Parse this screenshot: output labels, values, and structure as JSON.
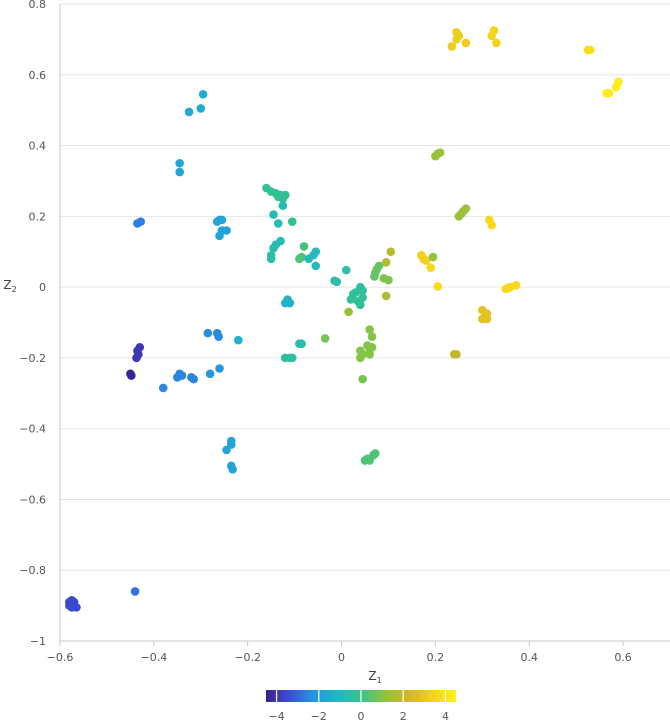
{
  "chart_data": {
    "type": "scatter",
    "title": "",
    "xlabel": {
      "main": "Z",
      "sub": "1"
    },
    "ylabel": {
      "main": "Z",
      "sub": "2"
    },
    "xlim": [
      -0.6,
      0.7
    ],
    "ylim": [
      -1.0,
      0.8
    ],
    "xticks": [
      -0.6,
      -0.4,
      -0.2,
      0,
      0.2,
      0.4,
      0.6
    ],
    "yticks": [
      -1,
      -0.8,
      -0.6,
      -0.4,
      -0.2,
      0,
      0.2,
      0.4,
      0.6,
      0.8
    ],
    "xtick_labels": [
      "−0.6",
      "−0.4",
      "−0.2",
      "0",
      "0.2",
      "0.4",
      "0.6"
    ],
    "ytick_labels": [
      "−1",
      "−0.8",
      "−0.6",
      "−0.4",
      "−0.2",
      "0",
      "0.2",
      "0.4",
      "0.6",
      "0.8"
    ],
    "grid": true,
    "colorbar": {
      "range": [
        -4.5,
        4.5
      ],
      "ticks": [
        -4,
        -2,
        0,
        2,
        4
      ],
      "tick_labels": [
        "−4",
        "−2",
        "0",
        "2",
        "4"
      ],
      "colormap": [
        "#3b1f8c",
        "#3b4ed8",
        "#2596e0",
        "#1fb8c8",
        "#36c28a",
        "#8ec43e",
        "#d2b528",
        "#f4d21c",
        "#fff21c"
      ]
    },
    "points": [
      {
        "x": 0.245,
        "y": 0.72,
        "c": 3.2
      },
      {
        "x": 0.25,
        "y": 0.71,
        "c": 3.2
      },
      {
        "x": 0.245,
        "y": 0.7,
        "c": 3.2
      },
      {
        "x": 0.235,
        "y": 0.68,
        "c": 3.2
      },
      {
        "x": 0.265,
        "y": 0.69,
        "c": 3.2
      },
      {
        "x": 0.325,
        "y": 0.725,
        "c": 3.4
      },
      {
        "x": 0.32,
        "y": 0.71,
        "c": 3.4
      },
      {
        "x": 0.33,
        "y": 0.69,
        "c": 3.4
      },
      {
        "x": 0.525,
        "y": 0.67,
        "c": 3.8
      },
      {
        "x": 0.53,
        "y": 0.67,
        "c": 3.8
      },
      {
        "x": 0.59,
        "y": 0.58,
        "c": 4.3
      },
      {
        "x": 0.585,
        "y": 0.565,
        "c": 4.3
      },
      {
        "x": 0.57,
        "y": 0.548,
        "c": 4.3
      },
      {
        "x": 0.565,
        "y": 0.548,
        "c": 4.3
      },
      {
        "x": 0.2,
        "y": 0.37,
        "c": 1.3
      },
      {
        "x": 0.205,
        "y": 0.377,
        "c": 1.3
      },
      {
        "x": 0.21,
        "y": 0.38,
        "c": 1.3
      },
      {
        "x": 0.25,
        "y": 0.2,
        "c": 1.4
      },
      {
        "x": 0.255,
        "y": 0.207,
        "c": 1.4
      },
      {
        "x": 0.26,
        "y": 0.215,
        "c": 1.4
      },
      {
        "x": 0.265,
        "y": 0.222,
        "c": 1.4
      },
      {
        "x": 0.315,
        "y": 0.19,
        "c": 3.6
      },
      {
        "x": 0.32,
        "y": 0.175,
        "c": 3.6
      },
      {
        "x": 0.17,
        "y": 0.09,
        "c": 3.3
      },
      {
        "x": 0.175,
        "y": 0.08,
        "c": 3.3
      },
      {
        "x": 0.18,
        "y": 0.075,
        "c": 3.3
      },
      {
        "x": 0.195,
        "y": 0.085,
        "c": 1.3
      },
      {
        "x": 0.19,
        "y": 0.055,
        "c": 3.6
      },
      {
        "x": 0.205,
        "y": 0.002,
        "c": 3.7
      },
      {
        "x": 0.35,
        "y": -0.005,
        "c": 3.6
      },
      {
        "x": 0.355,
        "y": -0.003,
        "c": 3.6
      },
      {
        "x": 0.36,
        "y": 0.0,
        "c": 3.6
      },
      {
        "x": 0.372,
        "y": 0.005,
        "c": 3.6
      },
      {
        "x": 0.3,
        "y": -0.065,
        "c": 2.8
      },
      {
        "x": 0.31,
        "y": -0.075,
        "c": 2.8
      },
      {
        "x": 0.305,
        "y": -0.085,
        "c": 2.8
      },
      {
        "x": 0.3,
        "y": -0.09,
        "c": 2.8
      },
      {
        "x": 0.31,
        "y": -0.09,
        "c": 2.8
      },
      {
        "x": 0.24,
        "y": -0.19,
        "c": 2.0
      },
      {
        "x": 0.245,
        "y": -0.19,
        "c": 2.0
      },
      {
        "x": 0.105,
        "y": 0.1,
        "c": 1.8
      },
      {
        "x": 0.095,
        "y": 0.07,
        "c": 1.7
      },
      {
        "x": 0.095,
        "y": -0.025,
        "c": 1.7
      },
      {
        "x": 0.08,
        "y": 0.06,
        "c": 0.6
      },
      {
        "x": 0.075,
        "y": 0.05,
        "c": 0.6
      },
      {
        "x": 0.072,
        "y": 0.04,
        "c": 0.6
      },
      {
        "x": 0.07,
        "y": 0.03,
        "c": 0.6
      },
      {
        "x": 0.09,
        "y": 0.025,
        "c": 0.9
      },
      {
        "x": 0.1,
        "y": 0.02,
        "c": 0.9
      },
      {
        "x": 0.04,
        "y": 0.0,
        "c": -0.3
      },
      {
        "x": 0.045,
        "y": -0.01,
        "c": -0.3
      },
      {
        "x": 0.03,
        "y": -0.015,
        "c": -0.3
      },
      {
        "x": 0.025,
        "y": -0.02,
        "c": -0.3
      },
      {
        "x": 0.02,
        "y": -0.035,
        "c": -0.3
      },
      {
        "x": 0.035,
        "y": -0.04,
        "c": -0.3
      },
      {
        "x": 0.04,
        "y": -0.05,
        "c": -0.3
      },
      {
        "x": 0.045,
        "y": -0.03,
        "c": -0.3
      },
      {
        "x": 0.015,
        "y": -0.07,
        "c": 1.2
      },
      {
        "x": 0.01,
        "y": 0.048,
        "c": -0.5
      },
      {
        "x": -0.015,
        "y": 0.018,
        "c": -0.5
      },
      {
        "x": -0.01,
        "y": 0.015,
        "c": -0.5
      },
      {
        "x": 0.06,
        "y": -0.12,
        "c": 1.0
      },
      {
        "x": 0.065,
        "y": -0.14,
        "c": 1.0
      },
      {
        "x": 0.055,
        "y": -0.165,
        "c": 1.0
      },
      {
        "x": 0.06,
        "y": -0.175,
        "c": 1.0
      },
      {
        "x": 0.065,
        "y": -0.17,
        "c": 1.0
      },
      {
        "x": 0.04,
        "y": -0.18,
        "c": 1.0
      },
      {
        "x": 0.045,
        "y": -0.19,
        "c": 1.0
      },
      {
        "x": 0.04,
        "y": -0.2,
        "c": 1.0
      },
      {
        "x": 0.06,
        "y": -0.19,
        "c": 1.0
      },
      {
        "x": 0.045,
        "y": -0.26,
        "c": 0.8
      },
      {
        "x": -0.035,
        "y": -0.145,
        "c": 0.8
      },
      {
        "x": 0.05,
        "y": -0.49,
        "c": 0.3
      },
      {
        "x": 0.055,
        "y": -0.485,
        "c": 0.3
      },
      {
        "x": 0.06,
        "y": -0.49,
        "c": 0.3
      },
      {
        "x": 0.068,
        "y": -0.475,
        "c": 0.3
      },
      {
        "x": 0.072,
        "y": -0.47,
        "c": 0.3
      },
      {
        "x": -0.16,
        "y": 0.28,
        "c": -0.2
      },
      {
        "x": -0.15,
        "y": 0.27,
        "c": -0.2
      },
      {
        "x": -0.14,
        "y": 0.265,
        "c": -0.2
      },
      {
        "x": -0.13,
        "y": 0.26,
        "c": -0.2
      },
      {
        "x": -0.12,
        "y": 0.26,
        "c": -0.2
      },
      {
        "x": -0.125,
        "y": 0.25,
        "c": -0.2
      },
      {
        "x": -0.135,
        "y": 0.255,
        "c": -0.2
      },
      {
        "x": -0.125,
        "y": 0.23,
        "c": -0.8
      },
      {
        "x": -0.145,
        "y": 0.205,
        "c": -0.8
      },
      {
        "x": -0.135,
        "y": 0.18,
        "c": -0.8
      },
      {
        "x": -0.105,
        "y": 0.185,
        "c": -0.2
      },
      {
        "x": -0.13,
        "y": 0.13,
        "c": -0.7
      },
      {
        "x": -0.14,
        "y": 0.12,
        "c": -0.7
      },
      {
        "x": -0.145,
        "y": 0.11,
        "c": -0.7
      },
      {
        "x": -0.15,
        "y": 0.09,
        "c": -0.5
      },
      {
        "x": -0.15,
        "y": 0.08,
        "c": -0.5
      },
      {
        "x": -0.08,
        "y": 0.115,
        "c": 0.2
      },
      {
        "x": -0.085,
        "y": 0.085,
        "c": 0.3
      },
      {
        "x": -0.09,
        "y": 0.08,
        "c": 0.3
      },
      {
        "x": -0.07,
        "y": 0.08,
        "c": -0.9
      },
      {
        "x": -0.06,
        "y": 0.09,
        "c": -0.9
      },
      {
        "x": -0.055,
        "y": 0.1,
        "c": -0.9
      },
      {
        "x": -0.055,
        "y": 0.06,
        "c": -0.9
      },
      {
        "x": -0.115,
        "y": -0.035,
        "c": -1.3
      },
      {
        "x": -0.12,
        "y": -0.045,
        "c": -1.3
      },
      {
        "x": -0.11,
        "y": -0.045,
        "c": -1.3
      },
      {
        "x": -0.12,
        "y": -0.2,
        "c": -0.4
      },
      {
        "x": -0.11,
        "y": -0.2,
        "c": -0.4
      },
      {
        "x": -0.105,
        "y": -0.2,
        "c": -0.4
      },
      {
        "x": -0.09,
        "y": -0.16,
        "c": -0.7
      },
      {
        "x": -0.085,
        "y": -0.16,
        "c": -0.7
      },
      {
        "x": -0.22,
        "y": -0.15,
        "c": -1.3
      },
      {
        "x": -0.3,
        "y": 0.505,
        "c": -1.6
      },
      {
        "x": -0.325,
        "y": 0.495,
        "c": -1.6
      },
      {
        "x": -0.295,
        "y": 0.545,
        "c": -1.6
      },
      {
        "x": -0.345,
        "y": 0.35,
        "c": -1.8
      },
      {
        "x": -0.345,
        "y": 0.325,
        "c": -1.8
      },
      {
        "x": -0.265,
        "y": 0.185,
        "c": -1.8
      },
      {
        "x": -0.26,
        "y": 0.19,
        "c": -1.8
      },
      {
        "x": -0.255,
        "y": 0.19,
        "c": -1.8
      },
      {
        "x": -0.255,
        "y": 0.16,
        "c": -1.8
      },
      {
        "x": -0.245,
        "y": 0.16,
        "c": -1.8
      },
      {
        "x": -0.26,
        "y": 0.145,
        "c": -1.8
      },
      {
        "x": -0.435,
        "y": 0.18,
        "c": -2.6
      },
      {
        "x": -0.428,
        "y": 0.185,
        "c": -2.6
      },
      {
        "x": -0.285,
        "y": -0.13,
        "c": -2.4
      },
      {
        "x": -0.265,
        "y": -0.13,
        "c": -2.4
      },
      {
        "x": -0.262,
        "y": -0.14,
        "c": -2.4
      },
      {
        "x": -0.26,
        "y": -0.23,
        "c": -2.2
      },
      {
        "x": -0.28,
        "y": -0.245,
        "c": -2.2
      },
      {
        "x": -0.345,
        "y": -0.245,
        "c": -2.5
      },
      {
        "x": -0.35,
        "y": -0.255,
        "c": -2.5
      },
      {
        "x": -0.34,
        "y": -0.25,
        "c": -2.5
      },
      {
        "x": -0.32,
        "y": -0.255,
        "c": -2.5
      },
      {
        "x": -0.315,
        "y": -0.26,
        "c": -2.5
      },
      {
        "x": -0.38,
        "y": -0.285,
        "c": -2.5
      },
      {
        "x": -0.43,
        "y": -0.17,
        "c": -3.9
      },
      {
        "x": -0.435,
        "y": -0.18,
        "c": -3.9
      },
      {
        "x": -0.433,
        "y": -0.19,
        "c": -3.9
      },
      {
        "x": -0.437,
        "y": -0.2,
        "c": -3.9
      },
      {
        "x": -0.45,
        "y": -0.245,
        "c": -4.4
      },
      {
        "x": -0.448,
        "y": -0.25,
        "c": -4.4
      },
      {
        "x": -0.235,
        "y": -0.435,
        "c": -1.8
      },
      {
        "x": -0.235,
        "y": -0.445,
        "c": -1.8
      },
      {
        "x": -0.245,
        "y": -0.46,
        "c": -1.8
      },
      {
        "x": -0.235,
        "y": -0.505,
        "c": -1.8
      },
      {
        "x": -0.232,
        "y": -0.515,
        "c": -1.8
      },
      {
        "x": -0.44,
        "y": -0.86,
        "c": -2.8
      },
      {
        "x": -0.575,
        "y": -0.885,
        "c": -3.5
      },
      {
        "x": -0.58,
        "y": -0.89,
        "c": -3.5
      },
      {
        "x": -0.57,
        "y": -0.89,
        "c": -3.5
      },
      {
        "x": -0.565,
        "y": -0.905,
        "c": -3.5
      },
      {
        "x": -0.575,
        "y": -0.905,
        "c": -3.5
      },
      {
        "x": -0.58,
        "y": -0.9,
        "c": -3.5
      }
    ]
  }
}
